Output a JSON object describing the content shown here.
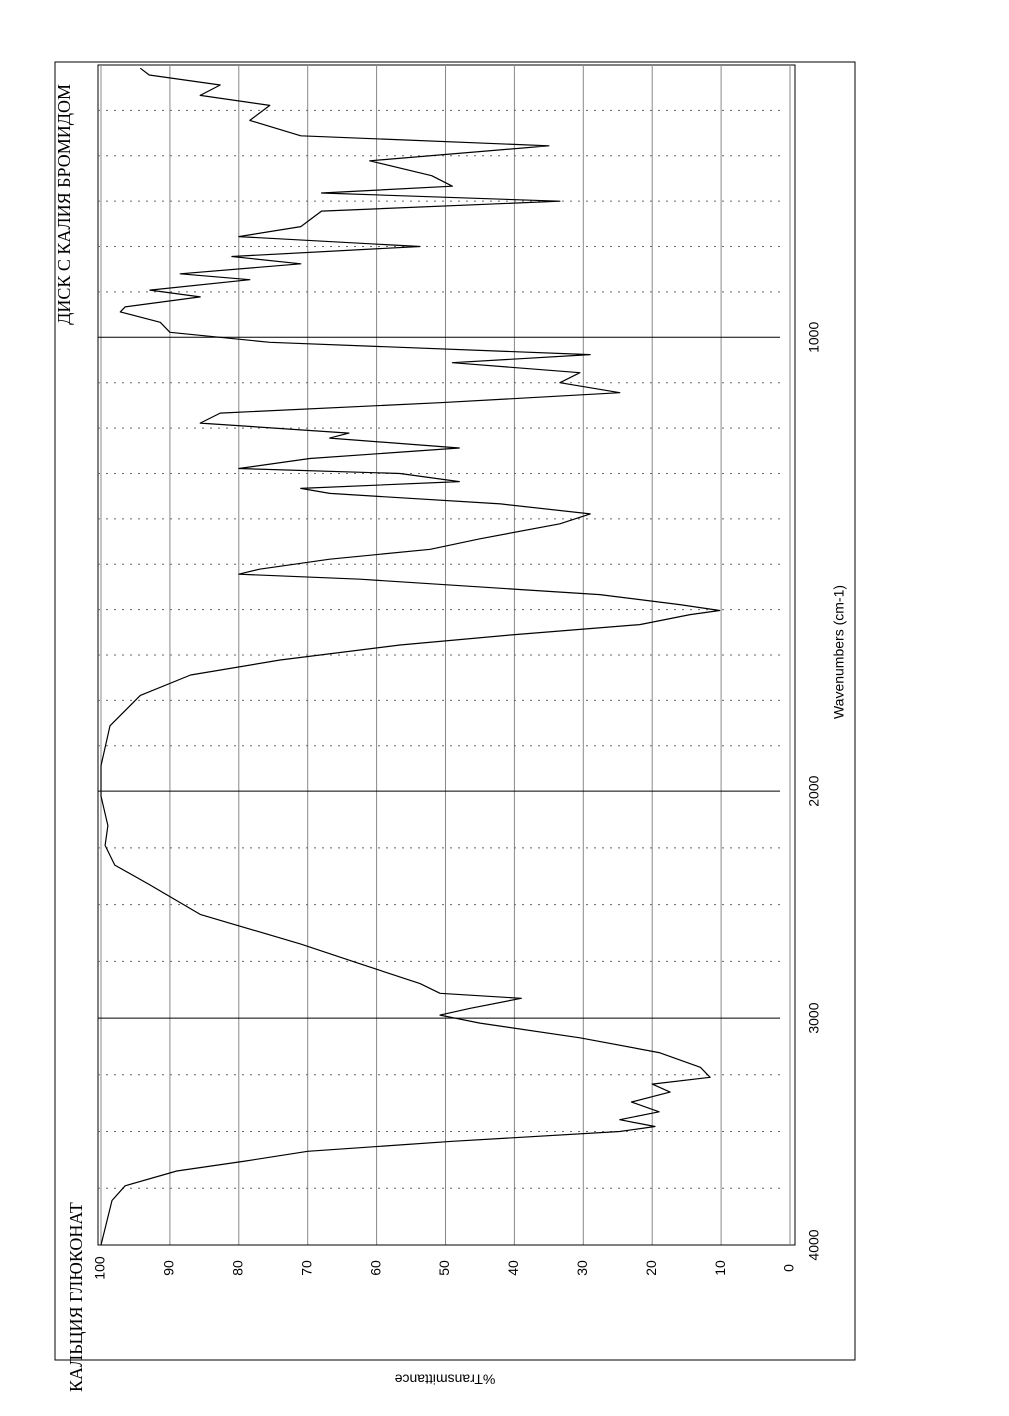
{
  "chart_data": {
    "type": "line",
    "title": "КАЛЬЦИЯ ГЛЮКОНАТ",
    "subtitle": "ДИСК С КАЛИЯ БРОМИДОМ",
    "x_label": "Wavenumbers (cm-1)",
    "y_label": "%Transmittance",
    "color": "#000000",
    "xlim": [
      4000,
      400
    ],
    "x_scale_change": 2000,
    "xticks": [
      4000,
      3000,
      2000,
      1000
    ],
    "xminor": [
      3750,
      3500,
      3250,
      2750,
      2500,
      2250,
      1900,
      1800,
      1700,
      1600,
      1500,
      1400,
      1300,
      1200,
      1100,
      900,
      800,
      700,
      600,
      500
    ],
    "ylim": [
      0,
      100
    ],
    "yticks": [
      0,
      10,
      20,
      30,
      40,
      50,
      60,
      70,
      80,
      90,
      100
    ],
    "grid": true,
    "x": [
      4000,
      3804,
      3739,
      3674,
      3630,
      3587,
      3543,
      3500,
      3478,
      3448,
      3413,
      3370,
      3326,
      3291,
      3261,
      3217,
      3152,
      3087,
      3022,
      2987,
      2957,
      2913,
      2891,
      2848,
      2761,
      2674,
      2543,
      2413,
      2326,
      2239,
      2152,
      2022,
      1944,
      1856,
      1789,
      1744,
      1711,
      1678,
      1656,
      1633,
      1611,
      1602,
      1589,
      1567,
      1556,
      1533,
      1522,
      1511,
      1489,
      1467,
      1444,
      1411,
      1389,
      1367,
      1344,
      1333,
      1318,
      1300,
      1289,
      1267,
      1244,
      1222,
      1211,
      1189,
      1167,
      1144,
      1122,
      1100,
      1078,
      1056,
      1038,
      1011,
      989,
      967,
      944,
      933,
      911,
      896,
      873,
      860,
      838,
      822,
      800,
      778,
      756,
      722,
      700,
      682,
      667,
      644,
      611,
      578,
      556,
      522,
      489,
      467,
      444,
      422,
      407
    ],
    "values": [
      100,
      98.4,
      96.5,
      89,
      79,
      70,
      49,
      24.7,
      19.6,
      24.7,
      19,
      23,
      17.4,
      20,
      11.6,
      13,
      19,
      30.5,
      45,
      50.8,
      46.4,
      39,
      50.8,
      53.7,
      62.4,
      71,
      85.6,
      92.9,
      98,
      99.4,
      99,
      100,
      100,
      98.7,
      94.3,
      87,
      74,
      56.6,
      40.6,
      21.8,
      14.5,
      10.2,
      16,
      27.6,
      39,
      62.4,
      80,
      77,
      66.8,
      52.2,
      45,
      33.4,
      29,
      42,
      66.8,
      71,
      48,
      56.6,
      80,
      69.7,
      48,
      66.8,
      64,
      85.6,
      82.7,
      50.8,
      24.7,
      33.4,
      30.5,
      49,
      29,
      75.5,
      90,
      91.4,
      97.2,
      96.5,
      85.6,
      92.9,
      78.4,
      88.5,
      71,
      81,
      53.7,
      80,
      71,
      68,
      33.4,
      68,
      49,
      52,
      61,
      35,
      71,
      78.4,
      75.5,
      85.6,
      82.7,
      93,
      94.3
    ]
  }
}
